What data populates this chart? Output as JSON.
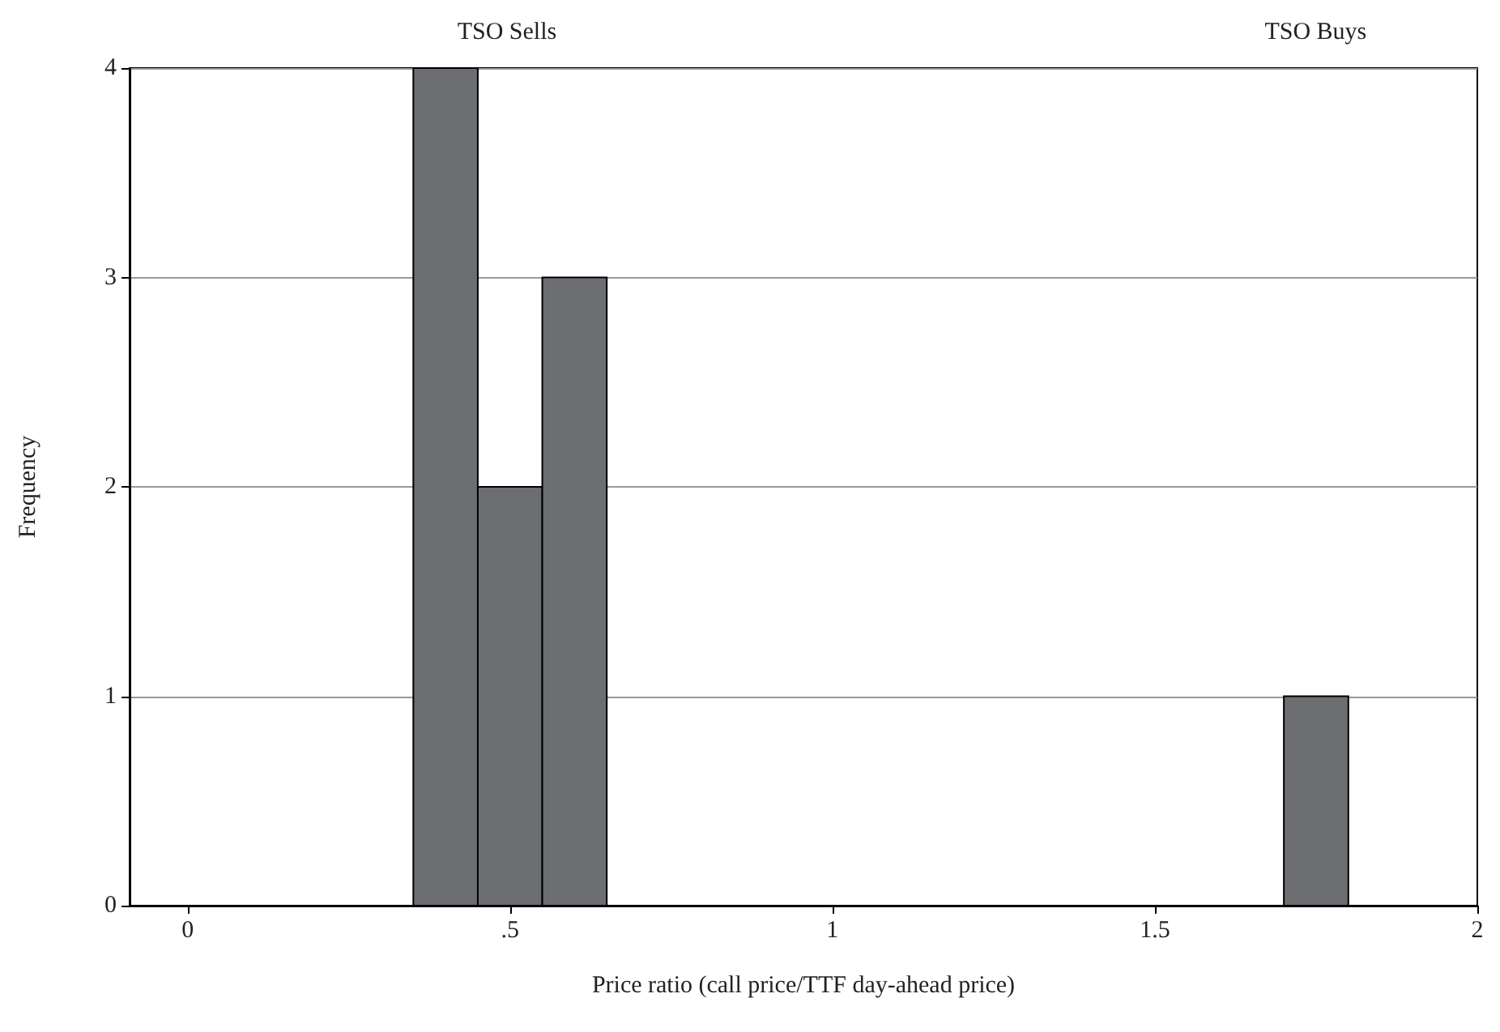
{
  "chart_data": {
    "type": "histogram",
    "xlabel": "Price ratio (call price/TTF day-ahead price)",
    "ylabel": "Frequency",
    "bins": [
      0.35,
      0.45,
      0.55,
      0.65,
      1.7,
      1.8
    ],
    "values": [
      4,
      2,
      3,
      0,
      1
    ],
    "color": "#6d6e71",
    "xlim": [
      -0.09,
      2
    ],
    "xticks": [
      0,
      {
        "value": 0.5,
        "label": ".5"
      },
      1,
      1.5,
      2
    ],
    "ylim": [
      0,
      4
    ],
    "yticks": [
      0,
      1,
      2,
      3,
      4
    ],
    "grid": "y",
    "annotations": [
      "TSO Sells",
      "TSO Buys"
    ]
  }
}
